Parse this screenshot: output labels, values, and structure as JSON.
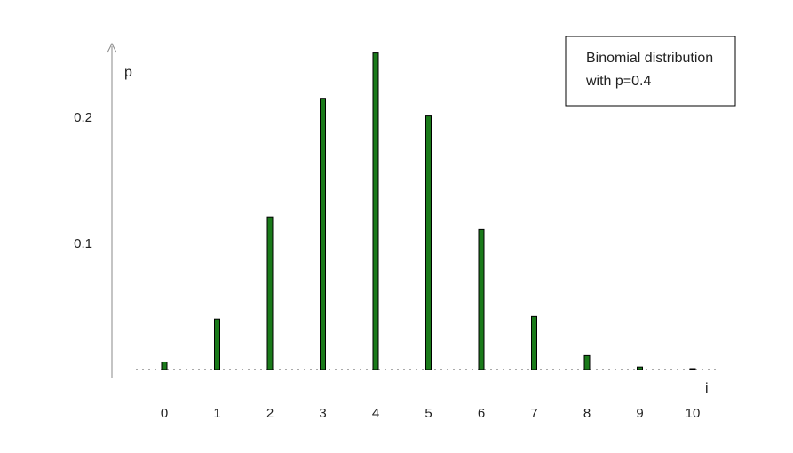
{
  "chart_data": {
    "type": "bar",
    "title": "",
    "xlabel": "i",
    "ylabel": "p",
    "categories": [
      "0",
      "1",
      "2",
      "3",
      "4",
      "5",
      "6",
      "7",
      "8",
      "9",
      "10"
    ],
    "values": [
      0.006,
      0.04,
      0.121,
      0.215,
      0.251,
      0.201,
      0.111,
      0.042,
      0.011,
      0.002,
      0.0001
    ],
    "ylim": [
      0,
      0.25
    ],
    "yticks": [
      {
        "value": 0.1,
        "label": "0.1"
      },
      {
        "value": 0.2,
        "label": "0.2"
      }
    ],
    "legend": {
      "placement": "top-right",
      "lines": [
        "Binomial distribution",
        "with p=0.4"
      ]
    },
    "grid": false,
    "baseline": "dotted"
  },
  "colors": {
    "bar_fill": "#1a7a1a",
    "bar_stroke": "#000000",
    "axis": "#888888",
    "baseline": "#555555",
    "text": "#222222"
  }
}
